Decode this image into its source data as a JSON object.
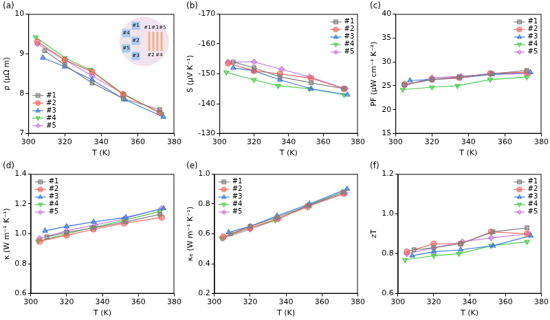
{
  "chart_data": [
    {
      "type": "line",
      "title": "(a)",
      "x_label": "T (K)",
      "y_label": "ρ (μΩ m)",
      "xlim": [
        300,
        380
      ],
      "xticks": [
        300,
        320,
        340,
        360,
        380
      ],
      "ylim": [
        7,
        10
      ],
      "yticks": [
        7,
        8,
        9,
        10
      ],
      "grid": false,
      "legend": "lower left",
      "inset": {
        "wafer_labels": [
          "#1",
          "#2",
          "#3",
          "#4",
          "#5"
        ],
        "bar_labels": [
          "#1",
          "#3",
          "#5",
          "#2",
          "#4"
        ]
      },
      "series": [
        {
          "name": "#1",
          "color": "#7f7f7f",
          "marker": "square",
          "x": [
            309,
            320,
            335,
            352,
            372
          ],
          "values": [
            9.08,
            8.72,
            8.27,
            7.88,
            7.6
          ]
        },
        {
          "name": "#2",
          "color": "#f0605a",
          "marker": "circle",
          "x": [
            305,
            320,
            335,
            352,
            372
          ],
          "values": [
            9.3,
            8.85,
            8.55,
            7.98,
            7.53
          ]
        },
        {
          "name": "#3",
          "color": "#3c78d8",
          "marker": "triangle_up",
          "x": [
            308,
            320,
            335,
            353,
            374
          ],
          "values": [
            8.9,
            8.68,
            8.35,
            7.85,
            7.42
          ]
        },
        {
          "name": "#4",
          "color": "#4cc94c",
          "marker": "triangle_down",
          "x": [
            304,
            320,
            334,
            352,
            373
          ],
          "values": [
            9.42,
            8.9,
            8.6,
            8.0,
            7.5
          ]
        },
        {
          "name": "#5",
          "color": "#c77ce0",
          "marker": "diamond",
          "x": [
            305,
            320,
            335,
            352,
            372
          ],
          "values": [
            9.25,
            8.85,
            8.45,
            8.0,
            7.52
          ]
        }
      ]
    },
    {
      "type": "line",
      "title": "(b)",
      "x_label": "T (K)",
      "y_label": "S (μV K⁻¹)",
      "xlim": [
        300,
        380
      ],
      "xticks": [
        300,
        320,
        340,
        360,
        380
      ],
      "ylim": [
        -130,
        -170
      ],
      "yticks": [
        -130,
        -140,
        -150,
        -160,
        -170
      ],
      "grid": false,
      "legend": "upper right",
      "series": [
        {
          "name": "#1",
          "color": "#7f7f7f",
          "marker": "square",
          "x": [
            308,
            320,
            335,
            353,
            372
          ],
          "values": [
            -154,
            -152,
            -149,
            -147,
            -145
          ]
        },
        {
          "name": "#2",
          "color": "#f0605a",
          "marker": "circle",
          "x": [
            305,
            320,
            335,
            353,
            372
          ],
          "values": [
            -153.5,
            -151,
            -150,
            -148.5,
            -145
          ]
        },
        {
          "name": "#3",
          "color": "#3c78d8",
          "marker": "triangle_up",
          "x": [
            308,
            320,
            335,
            353,
            374
          ],
          "values": [
            -152,
            -151,
            -148,
            -145,
            -143
          ]
        },
        {
          "name": "#4",
          "color": "#4cc94c",
          "marker": "triangle_down",
          "x": [
            304,
            320,
            334,
            352,
            372
          ],
          "values": [
            -150.5,
            -148,
            -146,
            -145,
            -143
          ]
        },
        {
          "name": "#5",
          "color": "#c77ce0",
          "marker": "diamond",
          "x": [
            305,
            320,
            336,
            352,
            373
          ],
          "values": [
            -154,
            -154,
            -151.5,
            -149,
            -145
          ]
        }
      ]
    },
    {
      "type": "line",
      "title": "(c)",
      "x_label": "T (K)",
      "y_label": "PF (μW cm⁻¹ K⁻²)",
      "xlim": [
        300,
        380
      ],
      "xticks": [
        300,
        320,
        340,
        360,
        380
      ],
      "ylim": [
        15,
        40
      ],
      "yticks": [
        15,
        20,
        25,
        30,
        35,
        40
      ],
      "grid": false,
      "legend": "upper right",
      "series": [
        {
          "name": "#1",
          "color": "#7f7f7f",
          "marker": "square",
          "x": [
            305,
            320,
            335,
            353,
            372
          ],
          "values": [
            25.2,
            26.3,
            26.9,
            27.5,
            28.2
          ]
        },
        {
          "name": "#2",
          "color": "#f0605a",
          "marker": "circle",
          "x": [
            305,
            320,
            335,
            352,
            372
          ],
          "values": [
            25.3,
            26.3,
            26.7,
            27.6,
            27.8
          ]
        },
        {
          "name": "#3",
          "color": "#3c78d8",
          "marker": "triangle_up",
          "x": [
            308,
            320,
            335,
            353,
            374
          ],
          "values": [
            26.1,
            26.3,
            26.6,
            27.4,
            27.8
          ]
        },
        {
          "name": "#4",
          "color": "#4cc94c",
          "marker": "triangle_down",
          "x": [
            304,
            320,
            334,
            352,
            372
          ],
          "values": [
            24.2,
            24.7,
            25.0,
            26.3,
            26.8
          ]
        },
        {
          "name": "#5",
          "color": "#c77ce0",
          "marker": "diamond",
          "x": [
            305,
            320,
            336,
            352,
            373
          ],
          "values": [
            25.0,
            26.7,
            27.0,
            27.4,
            27.5
          ]
        }
      ]
    },
    {
      "type": "line",
      "title": "(d)",
      "x_label": "T (K)",
      "y_label": "κ (W m⁻¹ K⁻¹)",
      "xlim": [
        300,
        380
      ],
      "xticks": [
        300,
        320,
        340,
        360,
        380
      ],
      "ylim": [
        0.6,
        1.4
      ],
      "yticks": [
        0.6,
        0.8,
        {
          "value": 1,
          "label": "1.0"
        },
        1.2,
        1.4
      ],
      "grid": false,
      "legend": "upper left",
      "series": [
        {
          "name": "#1",
          "color": "#7f7f7f",
          "marker": "square",
          "x": [
            309,
            320,
            335,
            353,
            372
          ],
          "values": [
            0.98,
            1.01,
            1.04,
            1.08,
            1.13
          ]
        },
        {
          "name": "#2",
          "color": "#f0605a",
          "marker": "circle",
          "x": [
            305,
            320,
            335,
            352,
            373
          ],
          "values": [
            0.95,
            0.99,
            1.03,
            1.07,
            1.11
          ]
        },
        {
          "name": "#3",
          "color": "#3c78d8",
          "marker": "triangle_up",
          "x": [
            308,
            320,
            335,
            353,
            374
          ],
          "values": [
            1.02,
            1.05,
            1.08,
            1.11,
            1.17
          ]
        },
        {
          "name": "#4",
          "color": "#4cc94c",
          "marker": "triangle_down",
          "x": [
            304,
            320,
            334,
            352,
            372
          ],
          "values": [
            0.95,
            1.0,
            1.04,
            1.09,
            1.15
          ]
        },
        {
          "name": "#5",
          "color": "#c77ce0",
          "marker": "diamond",
          "x": [
            305,
            320,
            336,
            352,
            373
          ],
          "values": [
            0.97,
            1.02,
            1.06,
            1.1,
            1.17
          ]
        }
      ]
    },
    {
      "type": "line",
      "title": "(e)",
      "x_label": "T (K)",
      "y_label": "κₑ (W m⁻¹ K⁻¹)",
      "xlim": [
        300,
        380
      ],
      "xticks": [
        300,
        320,
        340,
        360,
        380
      ],
      "ylim": [
        0.2,
        1
      ],
      "yticks": [
        0.2,
        0.4,
        0.6,
        0.8,
        {
          "value": 1,
          "label": "1.0"
        }
      ],
      "grid": false,
      "legend": "upper left",
      "series": [
        {
          "name": "#1",
          "color": "#7f7f7f",
          "marker": "square",
          "x": [
            309,
            320,
            335,
            353,
            372
          ],
          "values": [
            0.6,
            0.65,
            0.71,
            0.79,
            0.88
          ]
        },
        {
          "name": "#2",
          "color": "#f0605a",
          "marker": "circle",
          "x": [
            305,
            320,
            335,
            352,
            372
          ],
          "values": [
            0.58,
            0.64,
            0.7,
            0.78,
            0.87
          ]
        },
        {
          "name": "#3",
          "color": "#3c78d8",
          "marker": "triangle_up",
          "x": [
            308,
            320,
            335,
            353,
            374
          ],
          "values": [
            0.61,
            0.65,
            0.72,
            0.8,
            0.9
          ]
        },
        {
          "name": "#4",
          "color": "#4cc94c",
          "marker": "triangle_down",
          "x": [
            304,
            320,
            334,
            352,
            372
          ],
          "values": [
            0.57,
            0.64,
            0.69,
            0.79,
            0.88
          ]
        },
        {
          "name": "#5",
          "color": "#c77ce0",
          "marker": "diamond",
          "x": [
            305,
            320,
            336,
            352,
            373
          ],
          "values": [
            0.57,
            0.63,
            0.7,
            0.79,
            0.87
          ]
        }
      ]
    },
    {
      "type": "line",
      "title": "(f)",
      "x_label": "T (K)",
      "y_label": "zT",
      "xlim": [
        300,
        380
      ],
      "xticks": [
        300,
        320,
        340,
        360,
        380
      ],
      "ylim": [
        0.6,
        1.2
      ],
      "yticks": [
        0.6,
        0.8,
        {
          "value": 1,
          "label": "1.0"
        },
        1.2
      ],
      "grid": false,
      "legend": "upper right",
      "series": [
        {
          "name": "#1",
          "color": "#7f7f7f",
          "marker": "square",
          "x": [
            309,
            320,
            335,
            353,
            372
          ],
          "values": [
            0.82,
            0.83,
            0.85,
            0.91,
            0.93
          ]
        },
        {
          "name": "#2",
          "color": "#f0605a",
          "marker": "circle",
          "x": [
            305,
            320,
            335,
            352,
            372
          ],
          "values": [
            0.81,
            0.85,
            0.85,
            0.91,
            0.9
          ]
        },
        {
          "name": "#3",
          "color": "#3c78d8",
          "marker": "triangle_up",
          "x": [
            308,
            320,
            335,
            353,
            374
          ],
          "values": [
            0.79,
            0.81,
            0.82,
            0.84,
            0.89
          ]
        },
        {
          "name": "#4",
          "color": "#4cc94c",
          "marker": "triangle_down",
          "x": [
            304,
            320,
            334,
            352,
            372
          ],
          "values": [
            0.77,
            0.79,
            0.8,
            0.84,
            0.86
          ]
        },
        {
          "name": "#5",
          "color": "#c77ce0",
          "marker": "diamond",
          "x": [
            305,
            320,
            336,
            352,
            373
          ],
          "values": [
            0.8,
            0.83,
            0.86,
            0.88,
            0.9
          ]
        }
      ]
    }
  ]
}
